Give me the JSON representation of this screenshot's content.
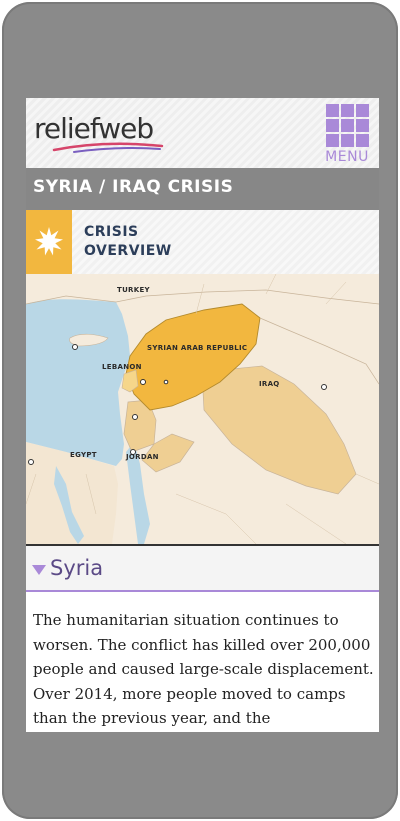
{
  "header": {
    "logo_text": "reliefweb",
    "menu_label": "MENU"
  },
  "title_bar": {
    "title": "SYRIA / IRAQ CRISIS"
  },
  "section": {
    "line1": "CRISIS",
    "line2": "OVERVIEW"
  },
  "map": {
    "labels": {
      "turkey": "TURKEY",
      "syria": "SYRIAN ARAB REPUBLIC",
      "lebanon": "LEBANON",
      "iraq": "IRAQ",
      "egypt": "EGYPT",
      "jordan": "JORDAN"
    },
    "colors": {
      "sea": "#b9d7e6",
      "land": "#f5ebdc",
      "syria": "#f2b73f",
      "region": "#efcf93",
      "border": "#c8b49a"
    }
  },
  "country_section": {
    "title": "Syria"
  },
  "content": {
    "paragraph": "The humanitarian situation continues to worsen. The conflict has killed over 200,000 people and caused large-scale displacement. Over 2014, more people moved to camps than the previous year, and the humanitarian needs"
  },
  "colors": {
    "accent_purple": "#a989d8",
    "title_bar_gray": "#878787",
    "burst_yellow": "#f2b73f"
  }
}
